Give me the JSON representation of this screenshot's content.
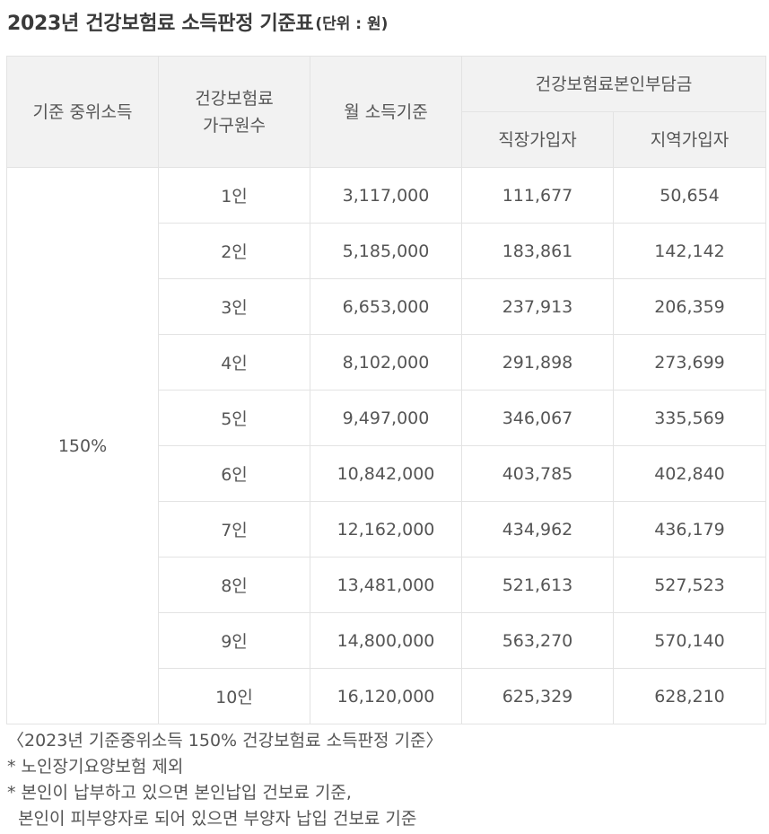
{
  "title": {
    "main": "2023년 건강보험료 소득판정 기준표",
    "unit": "(단위 : 원)"
  },
  "table": {
    "headers": {
      "median_income": "기준 중위소득",
      "household_line1": "건강보험료",
      "household_line2": "가구원수",
      "monthly_income": "월 소득기준",
      "premium_group": "건강보험료본인부담금",
      "employee": "직장가입자",
      "regional": "지역가입자"
    },
    "median_value": "150%",
    "rows": [
      {
        "household": "1인",
        "income": "3,117,000",
        "employee": "111,677",
        "regional": "50,654"
      },
      {
        "household": "2인",
        "income": "5,185,000",
        "employee": "183,861",
        "regional": "142,142"
      },
      {
        "household": "3인",
        "income": "6,653,000",
        "employee": "237,913",
        "regional": "206,359"
      },
      {
        "household": "4인",
        "income": "8,102,000",
        "employee": "291,898",
        "regional": "273,699"
      },
      {
        "household": "5인",
        "income": "9,497,000",
        "employee": "346,067",
        "regional": "335,569"
      },
      {
        "household": "6인",
        "income": "10,842,000",
        "employee": "403,785",
        "regional": "402,840"
      },
      {
        "household": "7인",
        "income": "12,162,000",
        "employee": "434,962",
        "regional": "436,179"
      },
      {
        "household": "8인",
        "income": "13,481,000",
        "employee": "521,613",
        "regional": "527,523"
      },
      {
        "household": "9인",
        "income": "14,800,000",
        "employee": "563,270",
        "regional": "570,140"
      },
      {
        "household": "10인",
        "income": "16,120,000",
        "employee": "625,329",
        "regional": "628,210"
      }
    ]
  },
  "notes": {
    "caption": "〈2023년 기준중위소득 150% 건강보험료 소득판정 기준〉",
    "note1": "* 노인장기요양보험 제외",
    "note2_line1": "* 본인이 납부하고 있으면 본인납입 건보료 기준,",
    "note2_line2": "  본인이 피부양자로 되어 있으면 부양자 납입 건보료 기준"
  },
  "colors": {
    "highlight": "#7fe6d0",
    "header_bg": "#f2f2f2",
    "border": "#e3e3e3",
    "text": "#555555"
  }
}
